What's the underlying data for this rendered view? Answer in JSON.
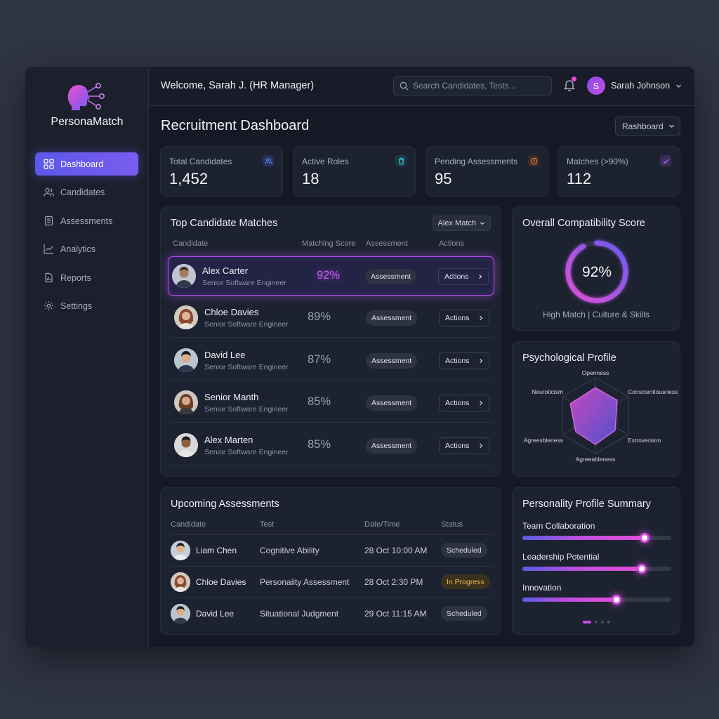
{
  "app": {
    "brand": "PersonaMatch"
  },
  "sidebar": {
    "items": [
      {
        "label": "Dashboard",
        "icon": "grid-icon",
        "active": true
      },
      {
        "label": "Candidates",
        "icon": "users-icon"
      },
      {
        "label": "Assessments",
        "icon": "clipboard-icon"
      },
      {
        "label": "Analytics",
        "icon": "chart-line-icon"
      },
      {
        "label": "Reports",
        "icon": "report-icon"
      },
      {
        "label": "Settings",
        "icon": "gear-icon"
      }
    ]
  },
  "header": {
    "welcome": "Welcome, Sarah J. (HR Manager)",
    "search_placeholder": "Search Candidates, Tests...",
    "user_initial": "S",
    "user_name": "Sarah Johnson"
  },
  "page": {
    "title": "Recruitment Dashboard",
    "view_select": "Rashboard"
  },
  "stats": [
    {
      "label": "Total Candidates",
      "value": "1,452",
      "icon": "users-icon",
      "color": "#5b8cf0"
    },
    {
      "label": "Active Roles",
      "value": "18",
      "icon": "trash-icon",
      "color": "#3cc3d9"
    },
    {
      "label": "Pending Assessments",
      "value": "95",
      "icon": "clock-icon",
      "color": "#e07a45"
    },
    {
      "label": "Matches (>90%)",
      "value": "112",
      "icon": "check-icon",
      "color": "#a36df2"
    }
  ],
  "matches": {
    "title": "Top Candidate Matches",
    "filter": "Alex Match",
    "columns": [
      "Candidate",
      "Matching Score",
      "Assessment",
      "Actions"
    ],
    "assessment_label": "Assessment",
    "actions_label": "Actions",
    "rows": [
      {
        "name": "Alex Carter",
        "role": "Senior Software Engineer",
        "score": "92%",
        "highlight": true
      },
      {
        "name": "Chloe Davies",
        "role": "Senior Software Engineer",
        "score": "89%"
      },
      {
        "name": "David Lee",
        "role": "Senior Software Engineer",
        "score": "87%"
      },
      {
        "name": "Senior Manth",
        "role": "Senior Software Engineer",
        "score": "85%"
      },
      {
        "name": "Alex Marten",
        "role": "Senior Software Engineer",
        "score": "85%"
      }
    ]
  },
  "compatibility": {
    "title": "Overall Compatibility Score",
    "value": "92%",
    "fraction": 0.92,
    "subtitle": "High Match | Culture & Skills"
  },
  "psych": {
    "title": "Psychological Profile",
    "axes": [
      "Openness",
      "Conscientiousness",
      "Extroversion",
      "Agreeableness",
      "Agreesbleness",
      "Neuroticism"
    ]
  },
  "upcoming": {
    "title": "Upcoming Assessments",
    "columns": [
      "Candidate",
      "Test",
      "Date/Time",
      "Status"
    ],
    "rows": [
      {
        "name": "Liam Chen",
        "test": "Cognitive Ability",
        "datetime": "28 Oct 10:00 AM",
        "status": "Scheduled",
        "status_type": "scheduled"
      },
      {
        "name": "Chloe Davies",
        "test": "Personaiity Assessment",
        "datetime": "28 Oct 2:30 PM",
        "status": "In Progress",
        "status_type": "progress"
      },
      {
        "name": "David Lee",
        "test": "Situational Judgment",
        "datetime": "29 Oct 11:15 AM",
        "status": "Scheduled",
        "status_type": "scheduled"
      }
    ]
  },
  "summary": {
    "title": "Personality Profile Summary",
    "traits": [
      {
        "label": "Team Collaboration",
        "value": 0.82
      },
      {
        "label": "Leadership Potential",
        "value": 0.8
      },
      {
        "label": "Innovation",
        "value": 0.63
      }
    ]
  }
}
